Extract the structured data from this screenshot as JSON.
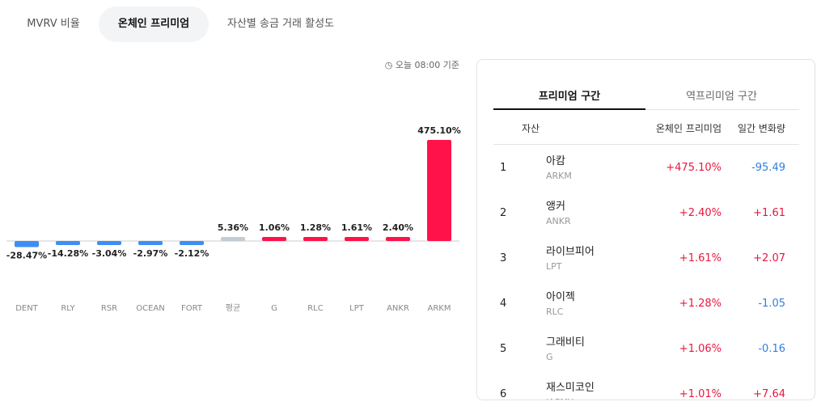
{
  "tabs": [
    "MVRV 비율",
    "온체인 프리미엄",
    "자산별 송금 거래 활성도"
  ],
  "timestamp": "오늘 08:00 기준",
  "chart_data": {
    "type": "bar",
    "categories": [
      "DENT",
      "RLY",
      "RSR",
      "OCEAN",
      "FORT",
      "평균",
      "G",
      "RLC",
      "LPT",
      "ANKR",
      "ARKM"
    ],
    "values": [
      -28.47,
      -14.28,
      -3.04,
      -2.97,
      -2.12,
      5.36,
      1.06,
      1.28,
      1.61,
      2.4,
      475.1
    ],
    "value_labels": [
      "-28.47%",
      "-14.28%",
      "-3.04%",
      "-2.97%",
      "-2.12%",
      "5.36%",
      "1.06%",
      "1.28%",
      "1.61%",
      "2.40%",
      "475.10%"
    ],
    "colors": [
      "#3d8ef5",
      "#3d8ef5",
      "#3d8ef5",
      "#3d8ef5",
      "#3d8ef5",
      "#c3ccd6",
      "#ff1249",
      "#ff1249",
      "#ff1249",
      "#ff1249",
      "#ff1249"
    ]
  },
  "panel": {
    "tabs": [
      "프리미엄 구간",
      "역프리미엄 구간"
    ],
    "headers": [
      "자산",
      "온체인 프리미엄",
      "일간 변화량"
    ],
    "rows": [
      {
        "rank": "1",
        "name": "아캄",
        "ticker": "ARKM",
        "premium": "+475.10%",
        "change": "-95.49"
      },
      {
        "rank": "2",
        "name": "앵커",
        "ticker": "ANKR",
        "premium": "+2.40%",
        "change": "+1.61"
      },
      {
        "rank": "3",
        "name": "라이브피어",
        "ticker": "LPT",
        "premium": "+1.61%",
        "change": "+2.07"
      },
      {
        "rank": "4",
        "name": "아이젝",
        "ticker": "RLC",
        "premium": "+1.28%",
        "change": "-1.05"
      },
      {
        "rank": "5",
        "name": "그래비티",
        "ticker": "G",
        "premium": "+1.06%",
        "change": "-0.16"
      },
      {
        "rank": "6",
        "name": "재스미코인",
        "ticker": "JASMY",
        "premium": "+1.01%",
        "change": "+7.64"
      }
    ]
  }
}
